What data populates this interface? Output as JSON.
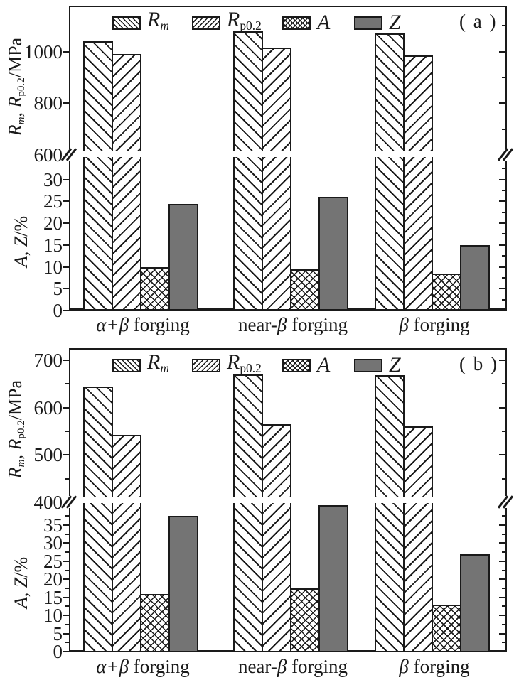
{
  "figure_type": "grouped bar charts with broken y-axis (mechanical properties vs forging process)",
  "colors": {
    "ink": "#1a1a1a",
    "z_fill": "#747474",
    "background": "#ffffff"
  },
  "legend": [
    {
      "key": "Rm",
      "pattern": "p-hatch-back",
      "label_runs": [
        {
          "t": "R",
          "italic": true
        },
        {
          "t": "m",
          "sub": true,
          "italic": true
        }
      ]
    },
    {
      "key": "Rp0.2",
      "pattern": "p-hatch-fwd",
      "label_runs": [
        {
          "t": "R",
          "italic": true
        },
        {
          "t": "p0.2",
          "sub": true
        }
      ]
    },
    {
      "key": "A",
      "pattern": "p-crosshatch",
      "label_runs": [
        {
          "t": "A",
          "italic": true
        }
      ]
    },
    {
      "key": "Z",
      "pattern": "p-solid-gray",
      "label_runs": [
        {
          "t": "Z",
          "italic": true
        }
      ]
    }
  ],
  "y_axis_label_runs": {
    "upper": [
      {
        "t": "R",
        "italic": true
      },
      {
        "t": "m",
        "sub": true,
        "italic": true
      },
      {
        "t": ", "
      },
      {
        "t": "R",
        "italic": true
      },
      {
        "t": "p0.2",
        "sub": true
      },
      {
        "t": "/MPa"
      }
    ],
    "lower": [
      {
        "t": "A",
        "italic": true
      },
      {
        "t": ", "
      },
      {
        "t": "Z",
        "italic": true
      },
      {
        "t": "/%"
      }
    ]
  },
  "category_runs": [
    [
      {
        "t": "α+β",
        "italic": true
      },
      {
        "t": " forging"
      }
    ],
    [
      {
        "t": "near-"
      },
      {
        "t": "β",
        "italic": true
      },
      {
        "t": " forging"
      }
    ],
    [
      {
        "t": "β",
        "italic": true
      },
      {
        "t": " forging"
      }
    ]
  ],
  "chart_data": [
    {
      "type": "bar",
      "panel_tag": "( a )",
      "title": "",
      "categories": [
        "α+β forging",
        "near-β forging",
        "β forging"
      ],
      "ylabel_upper": "Rm, Rp0.2/MPa",
      "ylabel_lower": "A, Z/%",
      "axis_break": true,
      "upper_axis": {
        "unit": "MPa",
        "range": [
          600,
          1178
        ],
        "major_ticks": [
          600,
          800,
          1000
        ],
        "minor_ticks": [
          700,
          900,
          1100
        ]
      },
      "lower_axis": {
        "unit": "%",
        "range": [
          0,
          35.2
        ],
        "major_ticks": [
          0,
          5,
          10,
          15,
          20,
          25,
          30
        ],
        "minor_step": 2.5
      },
      "series": [
        {
          "name": "Rm",
          "axis": "upper",
          "pattern": "p-hatch-back",
          "values": [
            1040,
            1080,
            1070
          ]
        },
        {
          "name": "Rp0.2",
          "axis": "upper",
          "pattern": "p-hatch-fwd",
          "values": [
            990,
            1015,
            985
          ]
        },
        {
          "name": "A",
          "axis": "lower",
          "pattern": "p-crosshatch",
          "values": [
            10,
            9.5,
            8.5
          ]
        },
        {
          "name": "Z",
          "axis": "lower",
          "pattern": "p-solid-gray",
          "values": [
            24.5,
            26,
            15
          ]
        }
      ]
    },
    {
      "type": "bar",
      "panel_tag": "( b )",
      "title": "",
      "categories": [
        "α+β forging",
        "near-β forging",
        "β forging"
      ],
      "ylabel_upper": "Rm, Rp0.2/MPa",
      "ylabel_lower": "A, Z/%",
      "axis_break": true,
      "upper_axis": {
        "unit": "MPa",
        "range": [
          400,
          725
        ],
        "major_ticks": [
          400,
          500,
          600,
          700
        ],
        "minor_ticks": [
          450,
          550,
          650
        ]
      },
      "lower_axis": {
        "unit": "%",
        "range": [
          0,
          41
        ],
        "major_ticks": [
          0,
          5,
          10,
          15,
          20,
          25,
          30,
          35
        ],
        "minor_step": 2.5
      },
      "series": [
        {
          "name": "Rm",
          "axis": "upper",
          "pattern": "p-hatch-back",
          "values": [
            645,
            670,
            668
          ]
        },
        {
          "name": "Rp0.2",
          "axis": "upper",
          "pattern": "p-hatch-fwd",
          "values": [
            542,
            565,
            560
          ]
        },
        {
          "name": "A",
          "axis": "lower",
          "pattern": "p-crosshatch",
          "values": [
            16,
            17.5,
            13
          ]
        },
        {
          "name": "Z",
          "axis": "lower",
          "pattern": "p-solid-gray",
          "values": [
            37.5,
            40.5,
            27
          ]
        }
      ]
    }
  ]
}
